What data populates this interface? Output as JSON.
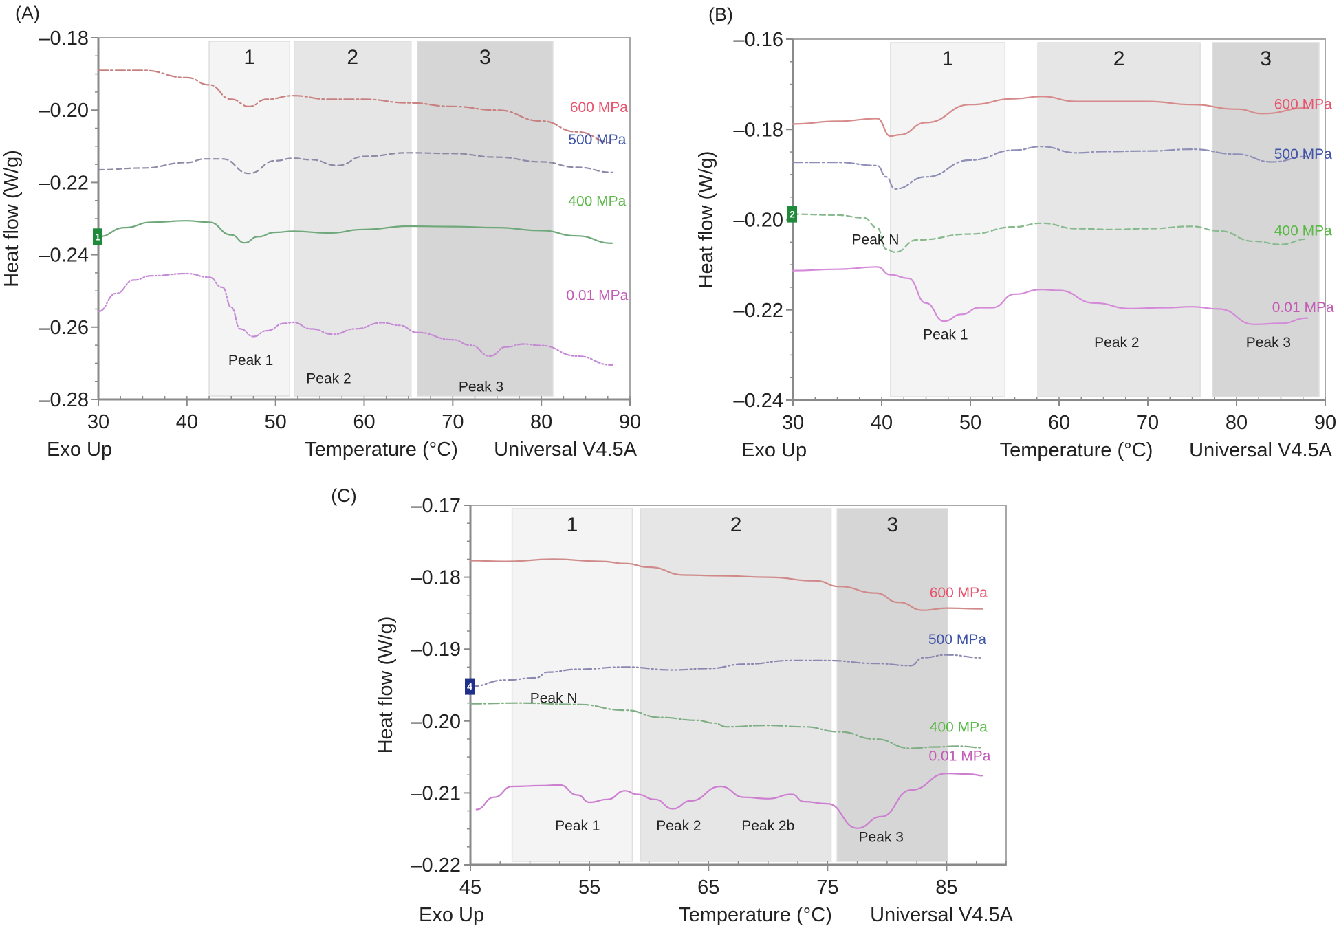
{
  "chart_data": [
    {
      "id": "A",
      "type": "line",
      "panel_label": "(A)",
      "xlabel": "Temperature (°C)",
      "ylabel": "Heat flow (W/g)",
      "footer_left": "Exo Up",
      "footer_right": "Universal V4.5A",
      "xlim": [
        30,
        90
      ],
      "ylim": [
        -0.28,
        -0.18
      ],
      "xticks": [
        30,
        40,
        50,
        60,
        70,
        80,
        90
      ],
      "xtick_labels": [
        "30",
        "40",
        "50",
        "60",
        "70",
        "80",
        "90"
      ],
      "yticks": [
        -0.18,
        -0.2,
        -0.22,
        -0.24,
        -0.26,
        -0.28
      ],
      "ytick_labels": [
        "–0.18",
        "–0.20",
        "–0.22",
        "–0.24",
        "–0.26",
        "–0.28"
      ],
      "regions": [
        {
          "label": "1",
          "x0": 42.5,
          "x1": 51.6,
          "shade": "#f4f4f4"
        },
        {
          "label": "2",
          "x0": 52.1,
          "x1": 65.3,
          "shade": "#e6e6e6"
        },
        {
          "label": "3",
          "x0": 66.0,
          "x1": 81.3,
          "shade": "#d6d6d6"
        }
      ],
      "annotations": [
        {
          "text": "Peak 1",
          "x": 47.2,
          "y": -0.2705
        },
        {
          "text": "Peak 2",
          "x": 56.0,
          "y": -0.2755
        },
        {
          "text": "Peak 3",
          "x": 73.2,
          "y": -0.2778
        }
      ],
      "marker": {
        "text": "1",
        "y": -0.235,
        "color": "#1f8a3a"
      },
      "series": [
        {
          "name": "600 MPa",
          "color": "#c98080",
          "label_color": "#e8546e",
          "dash": "14 4 3 4",
          "label_x": 86.5,
          "label_y": -0.2005,
          "x": [
            30,
            35,
            40,
            42.5,
            45,
            47,
            49,
            52,
            56,
            60,
            65,
            70,
            75,
            80,
            84,
            88
          ],
          "y": [
            -0.189,
            -0.189,
            -0.191,
            -0.193,
            -0.197,
            -0.199,
            -0.197,
            -0.196,
            -0.197,
            -0.197,
            -0.198,
            -0.199,
            -0.2,
            -0.203,
            -0.206,
            -0.209
          ]
        },
        {
          "name": "500 MPa",
          "color": "#8d8aa6",
          "label_color": "#3d52a8",
          "dash": "8 5",
          "label_x": 86.3,
          "label_y": -0.2095,
          "x": [
            30,
            35,
            40,
            42,
            44,
            47,
            50,
            52,
            54,
            57,
            60,
            65,
            70,
            75,
            80,
            84,
            88
          ],
          "y": [
            -0.2165,
            -0.216,
            -0.2145,
            -0.2135,
            -0.2135,
            -0.2175,
            -0.214,
            -0.2133,
            -0.2137,
            -0.2153,
            -0.2128,
            -0.2118,
            -0.212,
            -0.213,
            -0.2143,
            -0.2158,
            -0.2172
          ]
        },
        {
          "name": "400 MPa",
          "color": "#6fa87a",
          "label_color": "#5ab846",
          "dash": "",
          "label_x": 86.3,
          "label_y": -0.2265,
          "x": [
            30,
            33,
            36,
            40,
            42.5,
            45,
            46.5,
            48,
            50,
            52,
            56,
            60,
            65,
            70,
            75,
            80,
            84,
            88
          ],
          "y": [
            -0.235,
            -0.2325,
            -0.231,
            -0.2306,
            -0.231,
            -0.2345,
            -0.2367,
            -0.235,
            -0.2338,
            -0.2335,
            -0.234,
            -0.233,
            -0.2321,
            -0.2322,
            -0.2325,
            -0.2333,
            -0.2348,
            -0.2368
          ]
        },
        {
          "name": "0.01 MPa",
          "color": "#c58ad6",
          "label_color": "#c35bb6",
          "dash": "10 3 2 3 2 3",
          "label_x": 86.3,
          "label_y": -0.2525,
          "x": [
            30,
            32,
            34,
            36,
            40,
            42.5,
            44,
            45,
            46,
            47.5,
            49,
            51,
            52,
            54,
            56.5,
            59,
            62,
            64,
            66,
            70,
            72,
            74.2,
            76,
            78,
            80,
            84,
            88
          ],
          "y": [
            -0.2557,
            -0.2507,
            -0.247,
            -0.2458,
            -0.2452,
            -0.2462,
            -0.249,
            -0.2545,
            -0.2605,
            -0.2626,
            -0.261,
            -0.259,
            -0.2587,
            -0.2605,
            -0.262,
            -0.2605,
            -0.2588,
            -0.2595,
            -0.2615,
            -0.2635,
            -0.265,
            -0.268,
            -0.2655,
            -0.2647,
            -0.2651,
            -0.268,
            -0.2705
          ]
        }
      ]
    },
    {
      "id": "B",
      "type": "line",
      "panel_label": "(B)",
      "xlabel": "Temperature (°C)",
      "ylabel": "Heat flow (W/g)",
      "footer_left": "Exo Up",
      "footer_right": "Universal V4.5A",
      "xlim": [
        30,
        90
      ],
      "ylim": [
        -0.24,
        -0.16
      ],
      "xticks": [
        30,
        40,
        50,
        60,
        70,
        80,
        90
      ],
      "xtick_labels": [
        "30",
        "40",
        "50",
        "60",
        "70",
        "80",
        "90"
      ],
      "yticks": [
        -0.16,
        -0.18,
        -0.2,
        -0.22,
        -0.24
      ],
      "ytick_labels": [
        "–0.16",
        "–0.18",
        "–0.20",
        "–0.22",
        "–0.24"
      ],
      "regions": [
        {
          "label": "1",
          "x0": 41.0,
          "x1": 53.9,
          "shade": "#f4f4f4"
        },
        {
          "label": "2",
          "x0": 57.6,
          "x1": 75.9,
          "shade": "#e6e6e6"
        },
        {
          "label": "3",
          "x0": 77.3,
          "x1": 89.3,
          "shade": "#d6d6d6"
        }
      ],
      "annotations": [
        {
          "text": "Peak N",
          "x": 39.3,
          "y": -0.2055
        },
        {
          "text": "Peak 1",
          "x": 47.2,
          "y": -0.2265
        },
        {
          "text": "Peak 2",
          "x": 66.5,
          "y": -0.2283
        },
        {
          "text": "Peak 3",
          "x": 83.6,
          "y": -0.2283
        }
      ],
      "marker": {
        "text": "2",
        "y": -0.1988,
        "color": "#1f8a3a"
      },
      "series": [
        {
          "name": "600 MPa",
          "color": "#d68a8a",
          "label_color": "#e8546e",
          "dash": "",
          "label_x": 87.5,
          "label_y": -0.1755,
          "x": [
            30,
            35,
            39.5,
            41,
            42,
            45,
            50,
            55,
            58,
            62,
            65,
            70,
            75,
            80,
            83,
            88
          ],
          "y": [
            -0.1788,
            -0.1782,
            -0.1776,
            -0.1815,
            -0.1812,
            -0.1785,
            -0.1745,
            -0.1732,
            -0.1727,
            -0.1738,
            -0.1738,
            -0.1738,
            -0.1745,
            -0.1755,
            -0.1765,
            -0.1752
          ]
        },
        {
          "name": "500 MPa",
          "color": "#8f8fb8",
          "label_color": "#3d52a8",
          "dash": "14 4 3 4",
          "label_x": 87.5,
          "label_y": -0.1865,
          "x": [
            30,
            35,
            39.5,
            40.5,
            41.5,
            45,
            50,
            55,
            58,
            62,
            65,
            70,
            75,
            80,
            84,
            88
          ],
          "y": [
            -0.1873,
            -0.1873,
            -0.188,
            -0.1905,
            -0.1932,
            -0.1905,
            -0.1868,
            -0.1846,
            -0.1838,
            -0.1852,
            -0.1849,
            -0.1848,
            -0.1844,
            -0.1855,
            -0.1872,
            -0.186
          ]
        },
        {
          "name": "400 MPa",
          "color": "#86b98c",
          "label_color": "#5ab846",
          "dash": "8 5",
          "label_x": 87.5,
          "label_y": -0.2035,
          "x": [
            30,
            35,
            38,
            39.5,
            40.5,
            41.5,
            44,
            50,
            55,
            58,
            62,
            66,
            70,
            75,
            78,
            82,
            85,
            88
          ],
          "y": [
            -0.1988,
            -0.199,
            -0.1996,
            -0.2018,
            -0.2065,
            -0.2072,
            -0.2045,
            -0.2032,
            -0.2016,
            -0.2008,
            -0.202,
            -0.2022,
            -0.202,
            -0.2015,
            -0.2025,
            -0.2048,
            -0.2055,
            -0.2043
          ]
        },
        {
          "name": "0.01 MPa",
          "color": "#d48ad8",
          "label_color": "#c35bb6",
          "dash": "",
          "label_x": 87.5,
          "label_y": -0.2205,
          "x": [
            30,
            35,
            39.5,
            41,
            43,
            45,
            47,
            49,
            51,
            52.5,
            55,
            58,
            60,
            64,
            68,
            72,
            75,
            78,
            82,
            85,
            88
          ],
          "y": [
            -0.2113,
            -0.211,
            -0.2105,
            -0.2122,
            -0.213,
            -0.2185,
            -0.2225,
            -0.221,
            -0.2195,
            -0.2195,
            -0.2165,
            -0.2155,
            -0.2157,
            -0.2185,
            -0.2197,
            -0.2195,
            -0.2193,
            -0.2198,
            -0.2232,
            -0.223,
            -0.2218
          ]
        }
      ]
    },
    {
      "id": "C",
      "type": "line",
      "panel_label": "(C)",
      "xlabel": "Temperature (°C)",
      "ylabel": "Heat flow (W/g)",
      "footer_left": "Exo Up",
      "footer_right": "Universal V4.5A",
      "xlim": [
        45,
        90
      ],
      "ylim": [
        -0.22,
        -0.17
      ],
      "xticks": [
        45,
        55,
        65,
        75,
        85
      ],
      "xtick_labels": [
        "45",
        "55",
        "65",
        "75",
        "85"
      ],
      "yticks": [
        -0.17,
        -0.18,
        -0.19,
        -0.2,
        -0.21,
        -0.22
      ],
      "ytick_labels": [
        "–0.17",
        "–0.18",
        "–0.19",
        "–0.20",
        "–0.21",
        "–0.22"
      ],
      "regions": [
        {
          "label": "1",
          "x0": 48.5,
          "x1": 58.6,
          "shade": "#f4f4f4"
        },
        {
          "label": "2",
          "x0": 59.3,
          "x1": 75.3,
          "shade": "#e6e6e6"
        },
        {
          "label": "3",
          "x0": 75.8,
          "x1": 85.1,
          "shade": "#d6d6d6"
        }
      ],
      "annotations": [
        {
          "text": "Peak N",
          "x": 52.0,
          "y": -0.1975
        },
        {
          "text": "Peak 1",
          "x": 54.0,
          "y": -0.2152
        },
        {
          "text": "Peak 2",
          "x": 62.5,
          "y": -0.2152
        },
        {
          "text": "Peak 2b",
          "x": 70.0,
          "y": -0.2152
        },
        {
          "text": "Peak 3",
          "x": 79.5,
          "y": -0.2168
        }
      ],
      "marker": {
        "text": "4",
        "y": -0.1952,
        "color": "#1f2f8a"
      },
      "series": [
        {
          "name": "600 MPa",
          "color": "#d08a8a",
          "label_color": "#e8546e",
          "dash": "",
          "label_x": 86.0,
          "label_y": -0.1828,
          "x": [
            45,
            48,
            52,
            56,
            58,
            60,
            63,
            66,
            70,
            74,
            76,
            79,
            81,
            83,
            85,
            88
          ],
          "y": [
            -0.1777,
            -0.1778,
            -0.1775,
            -0.1778,
            -0.1781,
            -0.1786,
            -0.1797,
            -0.1798,
            -0.18,
            -0.1805,
            -0.1813,
            -0.1822,
            -0.1835,
            -0.1846,
            -0.1843,
            -0.1844
          ]
        },
        {
          "name": "500 MPa",
          "color": "#8a88b0",
          "label_color": "#3d52a8",
          "dash": "12 4 2 4 2 4",
          "label_x": 85.9,
          "label_y": -0.1893,
          "x": [
            45,
            48,
            50.5,
            51.5,
            54,
            58,
            62,
            65,
            68,
            72,
            75,
            79,
            82,
            83,
            85,
            88
          ],
          "y": [
            -0.1952,
            -0.1943,
            -0.194,
            -0.1932,
            -0.1928,
            -0.1925,
            -0.1929,
            -0.1927,
            -0.1921,
            -0.1916,
            -0.1916,
            -0.192,
            -0.1923,
            -0.1912,
            -0.1908,
            -0.1912
          ]
        },
        {
          "name": "400 MPa",
          "color": "#7fae84",
          "label_color": "#5ab846",
          "dash": "16 4 2 4",
          "label_x": 86.0,
          "label_y": -0.2015,
          "x": [
            45,
            49,
            54,
            58,
            61,
            64,
            65.5,
            66.5,
            70,
            73,
            76,
            79,
            82,
            84,
            86,
            88
          ],
          "y": [
            -0.1976,
            -0.1975,
            -0.1977,
            -0.1985,
            -0.1995,
            -0.1999,
            -0.2003,
            -0.2008,
            -0.2006,
            -0.2008,
            -0.2015,
            -0.2025,
            -0.2038,
            -0.2036,
            -0.2035,
            -0.2037
          ]
        },
        {
          "name": "0.01 MPa",
          "color": "#cc7fd0",
          "label_color": "#c35bb6",
          "dash": "",
          "label_x": 86.1,
          "label_y": -0.2055,
          "x": [
            45.5,
            47,
            48.5,
            51,
            52.5,
            54,
            55,
            56.5,
            58,
            59,
            60.5,
            62,
            63.5,
            66,
            68,
            70,
            72,
            73,
            75,
            77.5,
            79.5,
            82,
            85,
            87,
            88
          ],
          "y": [
            -0.2123,
            -0.2106,
            -0.2091,
            -0.209,
            -0.2089,
            -0.2103,
            -0.2113,
            -0.2109,
            -0.2097,
            -0.2102,
            -0.2109,
            -0.2122,
            -0.2111,
            -0.2091,
            -0.2106,
            -0.2108,
            -0.2102,
            -0.2112,
            -0.2115,
            -0.2149,
            -0.2133,
            -0.2096,
            -0.2073,
            -0.2074,
            -0.2076
          ]
        }
      ]
    }
  ]
}
